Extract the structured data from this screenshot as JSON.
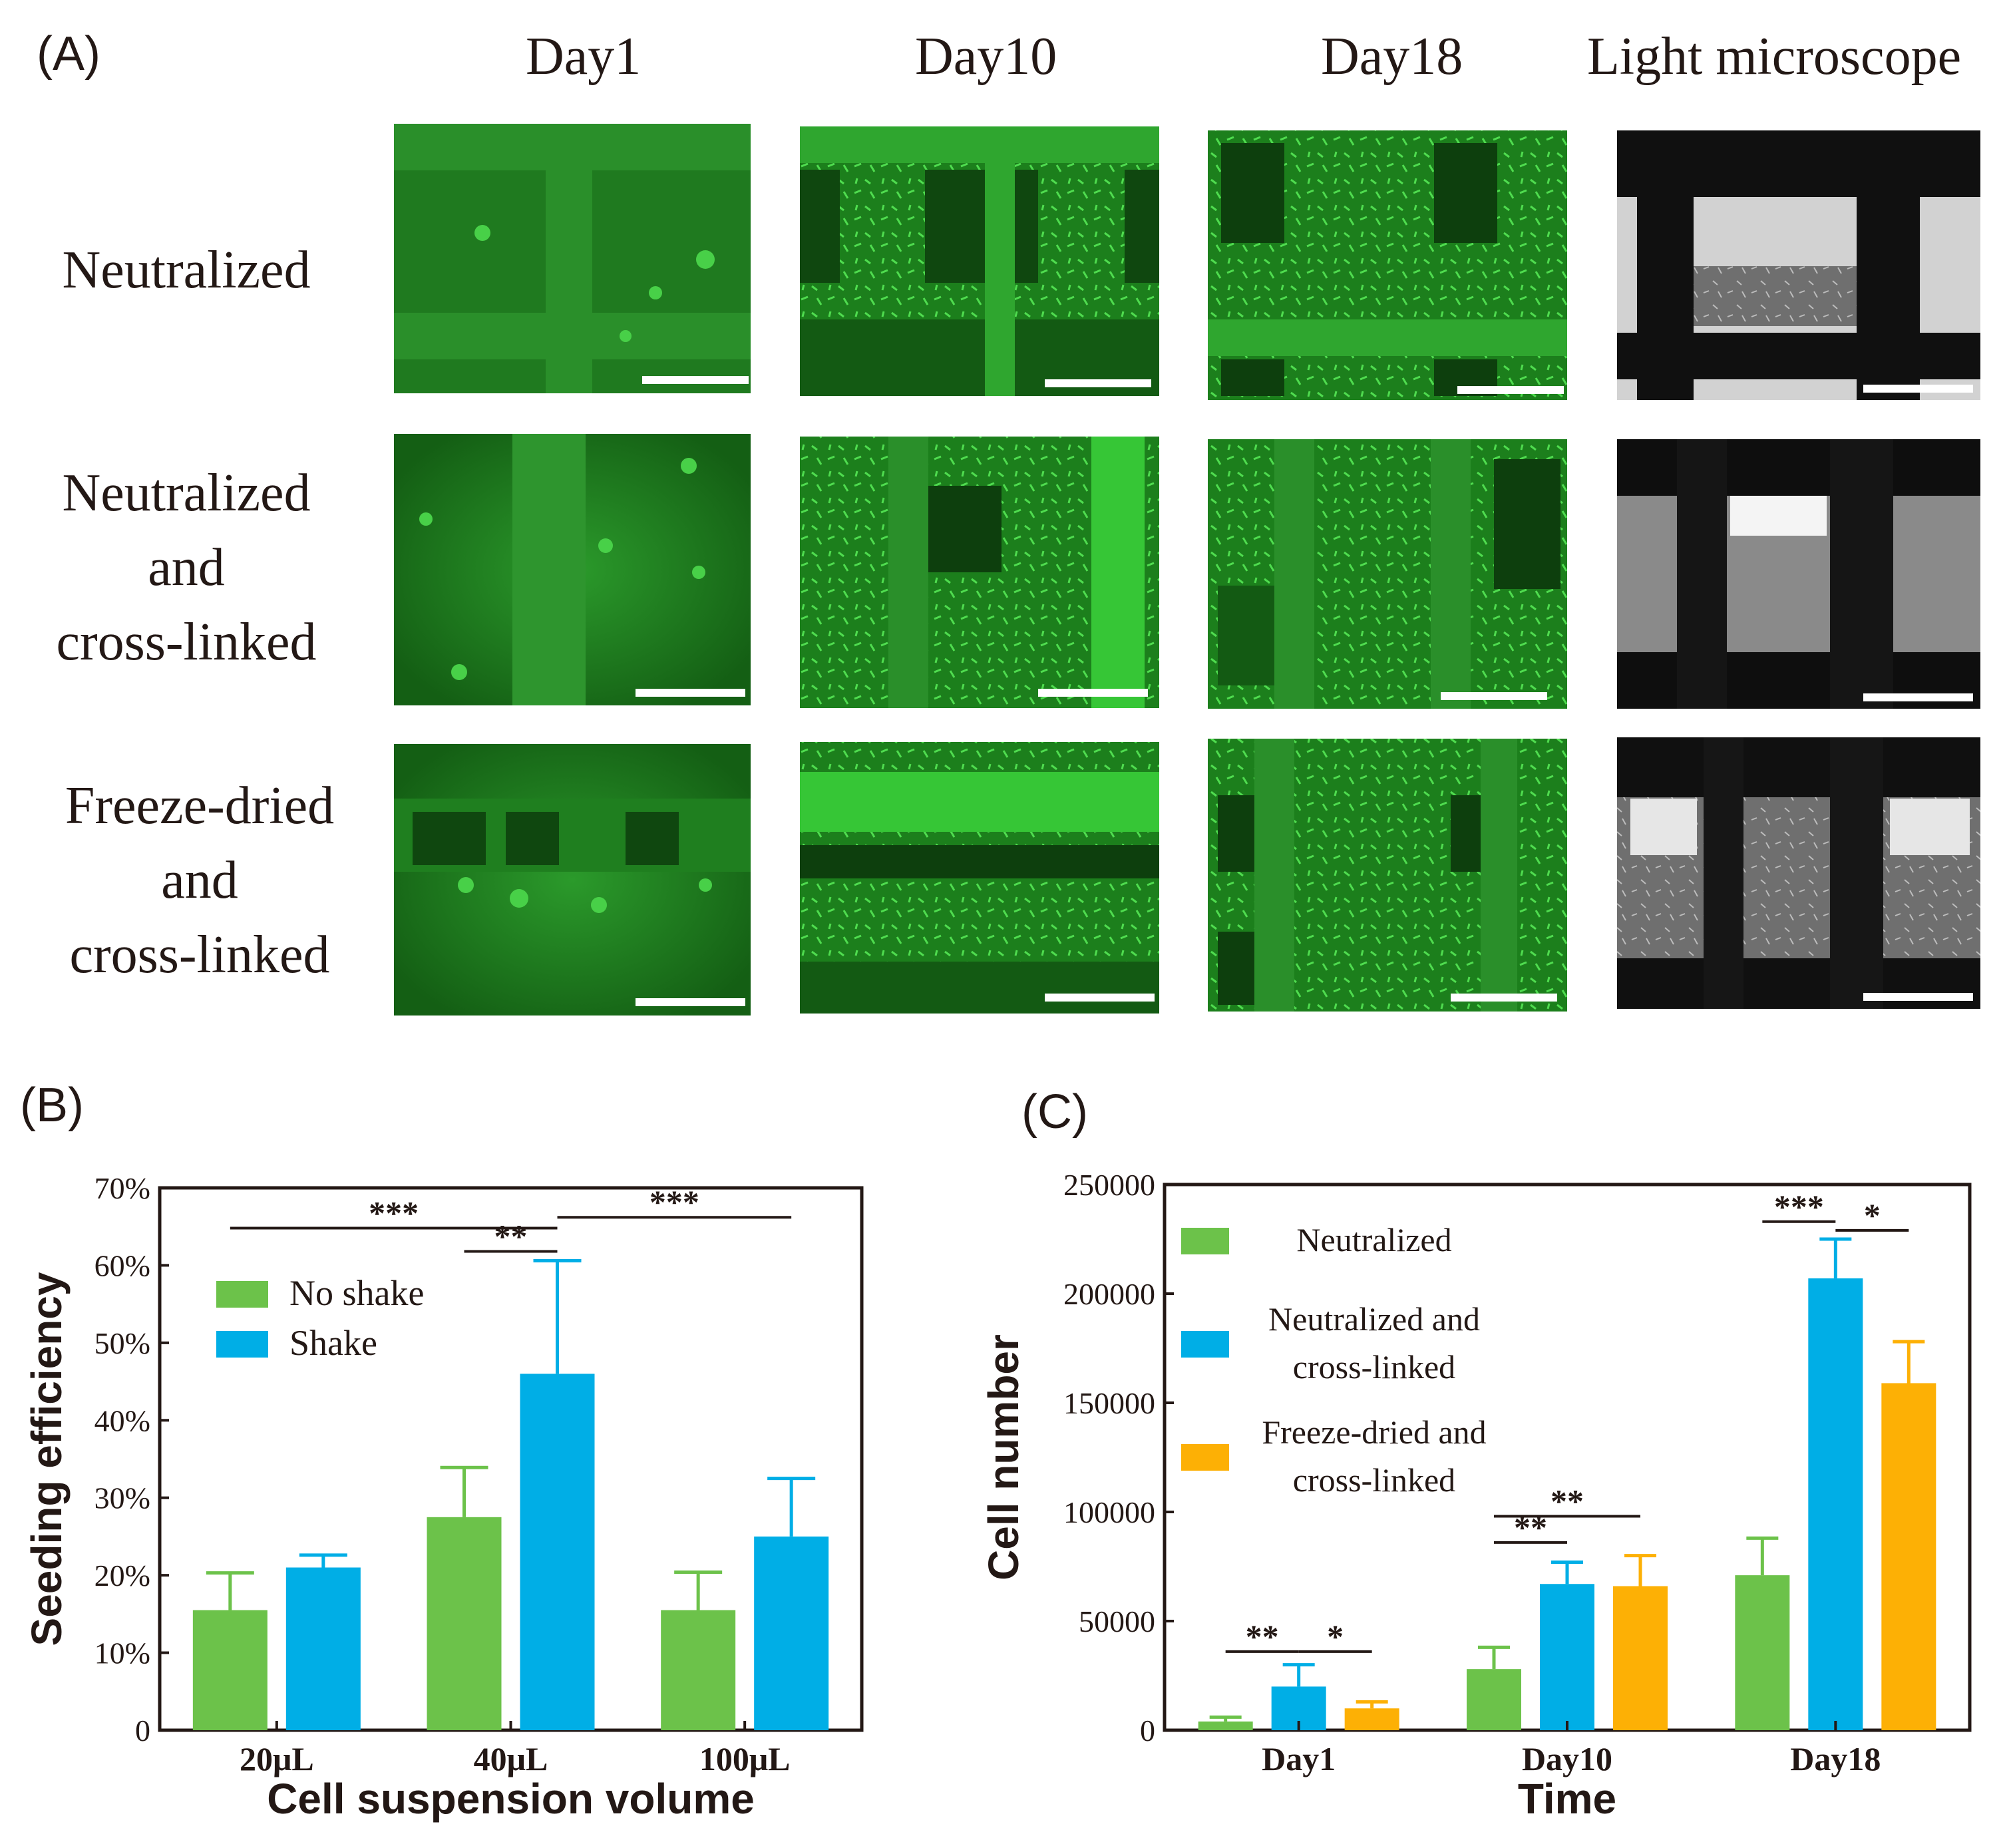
{
  "panel_a": {
    "letter": "(A)",
    "columns": [
      "Day1",
      "Day10",
      "Day18",
      "Light microscope"
    ],
    "rows": [
      {
        "lines": [
          "Neutralized"
        ]
      },
      {
        "lines": [
          "Neutralized",
          "and",
          "cross-linked"
        ]
      },
      {
        "lines": [
          "Freeze-dried",
          "and",
          "cross-linked"
        ]
      }
    ],
    "colors": {
      "fluorescence": "#1e7a1e",
      "fluorescence_bright": "#45d145",
      "light": "#cfcfcf"
    }
  },
  "panel_b": {
    "letter": "(B)"
  },
  "panel_c": {
    "letter": "(C)"
  },
  "chart_data": [
    {
      "id": "B",
      "type": "bar",
      "xlabel": "Cell suspension volume",
      "ylabel": "Seeding efficiency",
      "categories": [
        "20μL",
        "40μL",
        "100μL"
      ],
      "ylim": [
        0,
        70
      ],
      "yticks": [
        0,
        10,
        20,
        30,
        40,
        50,
        60,
        70
      ],
      "ytick_labels": [
        "0",
        "10%",
        "20%",
        "30%",
        "40%",
        "50%",
        "60%",
        "70%"
      ],
      "legend_position": "top-left",
      "series": [
        {
          "name": "No shake",
          "color": "#6cc24a",
          "values": [
            15.5,
            27.5,
            15.5
          ],
          "errors": [
            4.8,
            6.4,
            4.9
          ]
        },
        {
          "name": "Shake",
          "color": "#00aee6",
          "values": [
            21,
            46,
            25
          ],
          "errors": [
            1.6,
            14.6,
            7.5
          ]
        }
      ],
      "significance": [
        {
          "label": "***",
          "from": [
            0,
            0
          ],
          "to": [
            1,
            1
          ],
          "y": 64.8
        },
        {
          "label": "**",
          "from": [
            1,
            0
          ],
          "to": [
            1,
            1
          ],
          "y": 61.8
        },
        {
          "label": "***",
          "from": [
            1,
            1
          ],
          "to": [
            2,
            1
          ],
          "y": 66.2
        }
      ]
    },
    {
      "id": "C",
      "type": "bar",
      "xlabel": "Time",
      "ylabel": "Cell number",
      "categories": [
        "Day1",
        "Day10",
        "Day18"
      ],
      "ylim": [
        0,
        250000
      ],
      "yticks": [
        0,
        50000,
        100000,
        150000,
        200000,
        250000
      ],
      "ytick_labels": [
        "0",
        "50000",
        "100000",
        "150000",
        "200000",
        "250000"
      ],
      "legend_position": "top-left",
      "series": [
        {
          "name_lines": [
            "Neutralized"
          ],
          "color": "#6cc24a",
          "values": [
            4000,
            28000,
            71000
          ],
          "errors": [
            2000,
            10000,
            17000
          ]
        },
        {
          "name_lines": [
            "Neutralized and",
            "cross-linked"
          ],
          "color": "#00aee6",
          "values": [
            20000,
            67000,
            207000
          ],
          "errors": [
            10000,
            10000,
            18000
          ]
        },
        {
          "name_lines": [
            "Freeze-dried and",
            "cross-linked"
          ],
          "color": "#fdb005",
          "values": [
            10000,
            66000,
            159000
          ],
          "errors": [
            3000,
            14000,
            19000
          ]
        }
      ],
      "significance": [
        {
          "label": "**",
          "from": [
            0,
            0
          ],
          "to": [
            0,
            1
          ],
          "y": 36000
        },
        {
          "label": "*",
          "from": [
            0,
            1
          ],
          "to": [
            0,
            2
          ],
          "y": 36000
        },
        {
          "label": "**",
          "from": [
            1,
            0
          ],
          "to": [
            1,
            1
          ],
          "y": 86000
        },
        {
          "label": "**",
          "from": [
            1,
            0
          ],
          "to": [
            1,
            2
          ],
          "y": 98000
        },
        {
          "label": "***",
          "from": [
            2,
            0
          ],
          "to": [
            2,
            1
          ],
          "y": 233000
        },
        {
          "label": "*",
          "from": [
            2,
            1
          ],
          "to": [
            2,
            2
          ],
          "y": 229000
        }
      ]
    }
  ]
}
